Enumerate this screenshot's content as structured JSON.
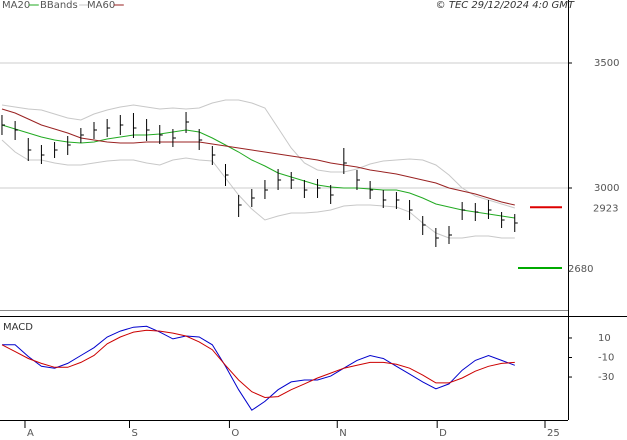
{
  "chart_data": [
    {
      "type": "ohlc",
      "title": "© TEC 29/12/2024 4:0 GMT",
      "x": [
        0,
        1,
        2,
        3,
        4,
        5,
        6,
        7,
        8,
        9,
        10,
        11,
        12,
        13,
        14,
        15,
        16,
        17,
        18,
        19,
        20,
        21,
        22,
        23,
        24,
        25,
        26,
        27,
        28,
        29,
        30,
        31,
        32,
        33,
        34,
        35,
        36,
        37,
        38,
        39
      ],
      "high": [
        3292,
        3268,
        3200,
        3172,
        3184,
        3208,
        3240,
        3264,
        3276,
        3292,
        3300,
        3276,
        3252,
        3236,
        3304,
        3236,
        3168,
        3096,
        2972,
        2996,
        3032,
        3076,
        3064,
        3032,
        3036,
        3012,
        3160,
        3072,
        3028,
        2992,
        2984,
        2952,
        2888,
        2840,
        2848,
        2944,
        2940,
        2952,
        2904,
        2896
      ],
      "low": [
        3212,
        3192,
        3108,
        3096,
        3120,
        3132,
        3180,
        3196,
        3204,
        3212,
        3200,
        3188,
        3176,
        3164,
        3220,
        3152,
        3092,
        3008,
        2884,
        2924,
        2956,
        2992,
        2996,
        2960,
        2960,
        2936,
        3056,
        2992,
        2956,
        2920,
        2916,
        2872,
        2812,
        2764,
        2776,
        2872,
        2868,
        2876,
        2840,
        2824
      ],
      "close": [
        3252,
        3232,
        3152,
        3132,
        3152,
        3172,
        3212,
        3232,
        3240,
        3252,
        3240,
        3232,
        3212,
        3200,
        3264,
        3192,
        3132,
        3052,
        2932,
        2960,
        2992,
        3032,
        3032,
        2992,
        3000,
        2972,
        3100,
        3032,
        2992,
        2952,
        2952,
        2912,
        2852,
        2800,
        2812,
        2912,
        2904,
        2912,
        2872,
        2860
      ],
      "color": "#000000",
      "series": [
        {
          "name": "MA20",
          "color": "#22aa22",
          "values": [
            3252,
            3236,
            3220,
            3204,
            3192,
            3184,
            3180,
            3184,
            3196,
            3204,
            3212,
            3212,
            3216,
            3224,
            3232,
            3224,
            3200,
            3172,
            3144,
            3112,
            3088,
            3060,
            3044,
            3028,
            3012,
            3004,
            3000,
            3000,
            2996,
            2992,
            2992,
            2980,
            2960,
            2936,
            2924,
            2912,
            2904,
            2896,
            2888,
            2880
          ]
        },
        {
          "name": "BBands",
          "color": "#c8c8c8",
          "upper": [
            3332,
            3324,
            3316,
            3312,
            3296,
            3280,
            3272,
            3296,
            3312,
            3324,
            3332,
            3324,
            3316,
            3320,
            3316,
            3320,
            3340,
            3352,
            3352,
            3340,
            3320,
            3240,
            3160,
            3100,
            3072,
            3064,
            3064,
            3076,
            3096,
            3108,
            3112,
            3116,
            3112,
            3092,
            3052,
            3000,
            2968,
            2952,
            2936,
            2920
          ],
          "lower": [
            3192,
            3144,
            3112,
            3112,
            3100,
            3092,
            3092,
            3100,
            3108,
            3112,
            3112,
            3100,
            3092,
            3112,
            3120,
            3112,
            3108,
            3040,
            2972,
            2916,
            2872,
            2888,
            2900,
            2900,
            2904,
            2912,
            2928,
            2932,
            2932,
            2928,
            2924,
            2904,
            2860,
            2820,
            2800,
            2800,
            2808,
            2808,
            2800,
            2800
          ]
        },
        {
          "name": "MA60",
          "color": "#992222",
          "values": [
            3316,
            3300,
            3276,
            3252,
            3236,
            3220,
            3200,
            3192,
            3184,
            3180,
            3180,
            3184,
            3184,
            3184,
            3184,
            3184,
            3176,
            3168,
            3160,
            3152,
            3144,
            3136,
            3128,
            3120,
            3112,
            3100,
            3092,
            3084,
            3072,
            3064,
            3056,
            3044,
            3032,
            3020,
            3000,
            2988,
            2976,
            2960,
            2944,
            2932
          ]
        }
      ],
      "levels": [
        {
          "value": 2923,
          "color": "#dd0000"
        },
        {
          "value": 2680,
          "color": "#00aa00"
        }
      ],
      "xlim": [
        -0.15,
        43.05
      ],
      "ylim": [
        2512,
        3752
      ],
      "yticks": [
        3000,
        3500
      ],
      "grid": true
    },
    {
      "type": "line",
      "title": "MACD",
      "x": [
        0,
        1,
        2,
        3,
        4,
        5,
        6,
        7,
        8,
        9,
        10,
        11,
        12,
        13,
        14,
        15,
        16,
        17,
        18,
        19,
        20,
        21,
        22,
        23,
        24,
        25,
        26,
        27,
        28,
        29,
        30,
        31,
        32,
        33,
        34,
        35,
        36,
        37,
        38,
        39
      ],
      "series": [
        {
          "color": "#0000cc",
          "values": [
            3,
            3,
            -9,
            -19,
            -21,
            -16,
            -8,
            0,
            11,
            17,
            21,
            22,
            16,
            9,
            12,
            11,
            3,
            -19,
            -43,
            -64,
            -55,
            -43,
            -35,
            -33,
            -33,
            -29,
            -21,
            -13,
            -8,
            -11,
            -19,
            -27,
            -35,
            -42,
            -37,
            -23,
            -13,
            -8,
            -13,
            -18
          ]
        },
        {
          "color": "#cc0000",
          "values": [
            3,
            -4,
            -11,
            -16,
            -20,
            -20,
            -15,
            -8,
            4,
            11,
            16,
            18,
            17,
            15,
            12,
            6,
            -2,
            -18,
            -33,
            -45,
            -51,
            -50,
            -43,
            -37,
            -31,
            -26,
            -21,
            -18,
            -15,
            -15,
            -17,
            -21,
            -28,
            -36,
            -36,
            -31,
            -24,
            -19,
            -16,
            -15
          ]
        }
      ],
      "xlim": [
        -0.15,
        43.05
      ],
      "ylim": [
        -74,
        32.5
      ],
      "yticks": [
        10,
        -10,
        -30
      ],
      "xticks": [
        {
          "value": 1.75,
          "label": "A"
        },
        {
          "value": 9.7,
          "label": "S"
        },
        {
          "value": 17.3,
          "label": "O"
        },
        {
          "value": 25.5,
          "label": "N"
        },
        {
          "value": 33.1,
          "label": "D"
        },
        {
          "value": 41.3,
          "label": "25"
        }
      ]
    }
  ]
}
